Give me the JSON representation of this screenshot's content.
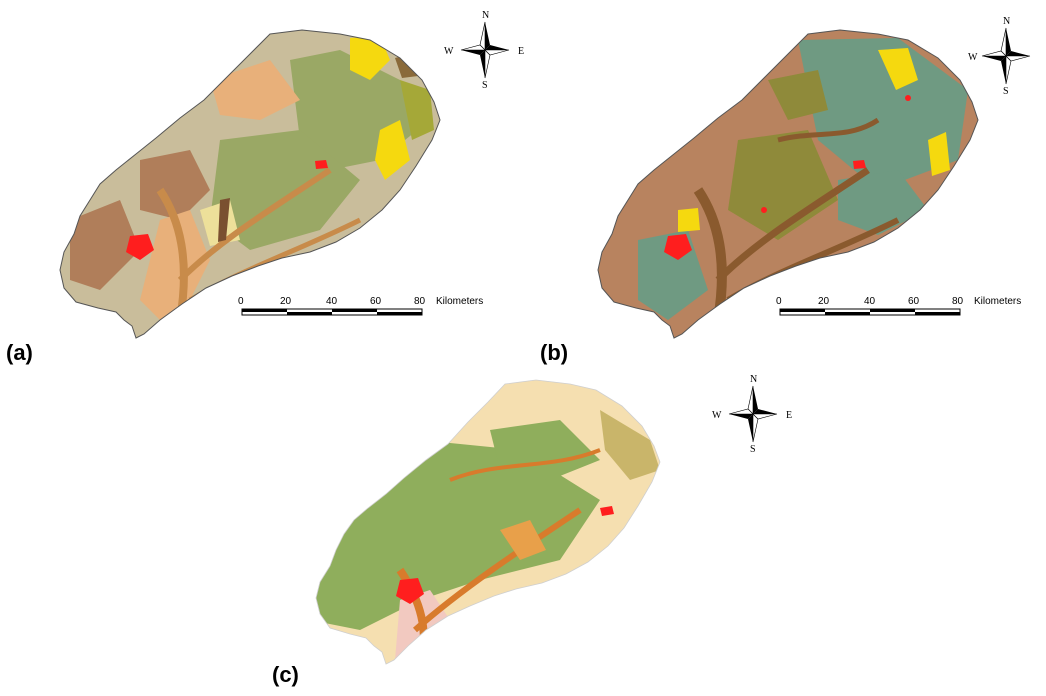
{
  "panels": [
    {
      "id": "a",
      "label": "(a)"
    },
    {
      "id": "b",
      "label": "(b)"
    },
    {
      "id": "c",
      "label": "(c)"
    }
  ],
  "compass": {
    "n": "N",
    "s": "S",
    "e": "E",
    "w": "W"
  },
  "scalebar": {
    "ticks": [
      "0",
      "20",
      "40",
      "60",
      "80"
    ],
    "unit": "Kilometers"
  },
  "colors": {
    "a_base": "#c9bd9b",
    "a_greens": "#9aa865",
    "a_peach": "#e8b07a",
    "a_brown": "#b07e5a",
    "a_yellow": "#f5d90f",
    "b_base": "#b8835f",
    "b_teal": "#6f9a82",
    "b_olive": "#8f8a3a",
    "b_dark": "#8a5a2e",
    "c_base": "#f5dfb0",
    "c_green": "#8fae5c",
    "c_orange": "#d87b2c",
    "urban_red": "#ff1e1e"
  }
}
